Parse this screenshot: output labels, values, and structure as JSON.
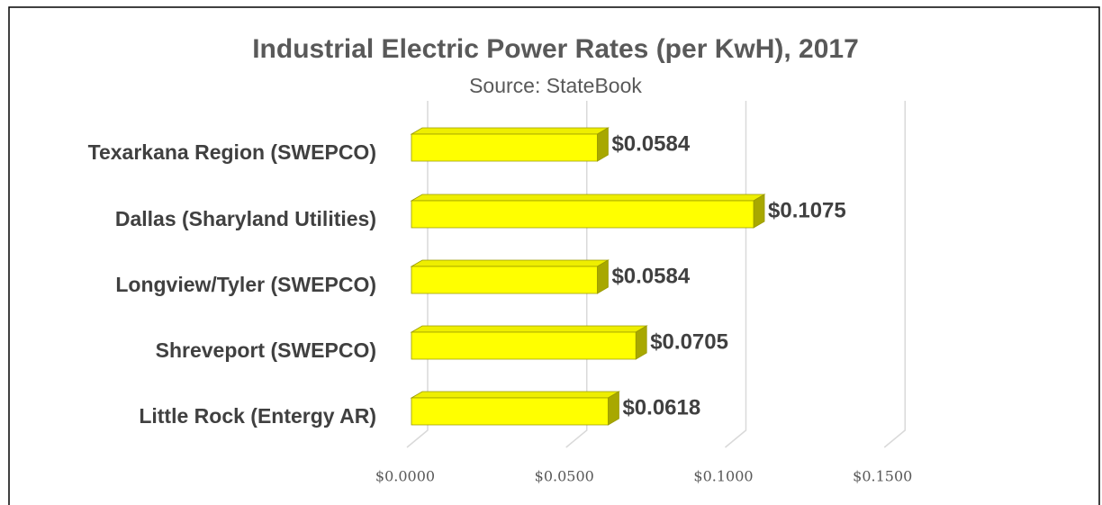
{
  "chart_data": {
    "type": "bar",
    "orientation": "horizontal",
    "title": "Industrial Electric Power Rates (per KwH), 2017",
    "subtitle": "Source: StateBook",
    "categories": [
      "Texarkana Region (SWEPCO)",
      "Dallas (Sharyland  Utilities)",
      "Longview/Tyler (SWEPCO)",
      "Shreveport (SWEPCO)",
      "Little Rock (Entergy AR)"
    ],
    "values": [
      0.0584,
      0.1075,
      0.0584,
      0.0705,
      0.0618
    ],
    "value_labels": [
      "$0.0584",
      "$0.1075",
      "$0.0584",
      "$0.0705",
      "$0.0618"
    ],
    "color": "#ffff00",
    "xlim": [
      0,
      0.15
    ],
    "xticks": [
      {
        "value": 0,
        "label": "$0.0000"
      },
      {
        "value": 0.05,
        "label": "$0.0500"
      },
      {
        "value": 0.1,
        "label": "$0.1000"
      },
      {
        "value": 0.15,
        "label": "$0.1500"
      }
    ],
    "grid": true
  }
}
